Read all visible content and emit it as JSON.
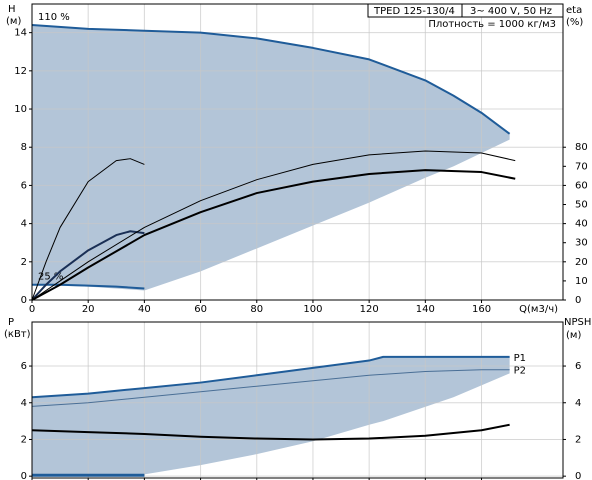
{
  "chart_data": [
    {
      "type": "line",
      "ylabel": "H",
      "yunit": "(м)",
      "y2label": "eta",
      "y2unit": "(%)",
      "xlabel": "Q(м3/ч)",
      "info": [
        "TPED 125-130/4",
        "3~ 400 V, 50 Hz",
        "Плотность = 1000 кг/м3"
      ],
      "xlim": [
        0,
        189
      ],
      "ylim": [
        0,
        15.5
      ],
      "y2lim": [
        0,
        155
      ],
      "xticks": [
        0,
        20,
        40,
        60,
        80,
        100,
        120,
        140,
        160
      ],
      "show_xtick_labels": true,
      "yticks": [
        0,
        2,
        4,
        6,
        8,
        10,
        12,
        14
      ],
      "y2ticks": [
        0,
        10,
        20,
        30,
        40,
        50,
        60,
        70,
        80
      ],
      "grid": true,
      "series": [
        {
          "name": "110 %",
          "label_at": "start",
          "color": "#1f5c99",
          "width": 2,
          "fill": "#b3c5d8",
          "x": [
            0,
            20,
            40,
            60,
            80,
            100,
            120,
            140,
            150,
            160,
            170
          ],
          "values": [
            14.4,
            14.2,
            14.1,
            14.0,
            13.7,
            13.2,
            12.6,
            11.5,
            10.7,
            9.8,
            8.7
          ],
          "lower": [
            0.8,
            0.7,
            0.5,
            1.5,
            2.7,
            3.9,
            5.1,
            6.4,
            7.0,
            7.7,
            8.4
          ]
        },
        {
          "name": "25 %",
          "label_at": "start",
          "color": "#1f5c99",
          "width": 2,
          "x": [
            0,
            10,
            20,
            30,
            40
          ],
          "values": [
            0.8,
            0.8,
            0.75,
            0.7,
            0.6
          ]
        },
        {
          "color": "#1a2f55",
          "width": 2,
          "x": [
            0,
            5,
            10,
            20,
            30,
            35,
            40
          ],
          "values": [
            0,
            0.8,
            1.5,
            2.6,
            3.4,
            3.6,
            3.5
          ]
        },
        {
          "color": "#000000",
          "width": 1,
          "axis": "y2",
          "x": [
            0,
            5,
            10,
            20,
            30,
            35,
            40
          ],
          "values": [
            0,
            20,
            38,
            62,
            73,
            74,
            71
          ]
        },
        {
          "color": "#000000",
          "width": 1,
          "axis": "y2",
          "x": [
            0,
            10,
            20,
            40,
            60,
            80,
            100,
            120,
            140,
            160,
            172
          ],
          "values": [
            0,
            10,
            20,
            38,
            52,
            63,
            71,
            76,
            78,
            77,
            73
          ]
        },
        {
          "color": "#000000",
          "width": 2,
          "axis": "y2",
          "x": [
            0,
            10,
            20,
            40,
            60,
            80,
            100,
            120,
            140,
            160,
            172
          ],
          "values": [
            0,
            8,
            17,
            34,
            46,
            56,
            62,
            66,
            68,
            67,
            63.5
          ]
        }
      ]
    },
    {
      "type": "line",
      "ylabel": "P",
      "yunit": "(кВт)",
      "y2label": "NPSH",
      "y2unit": "(м)",
      "xlim": [
        0,
        189
      ],
      "ylim": [
        -0.1,
        8.4
      ],
      "y2lim": [
        -0.1,
        8.4
      ],
      "xticks": [
        0,
        20,
        40,
        60,
        80,
        100,
        120,
        140,
        160
      ],
      "show_xtick_labels": false,
      "yticks": [
        0,
        2,
        4,
        6
      ],
      "y2ticks": [
        0,
        2,
        4,
        6
      ],
      "grid": true,
      "series": [
        {
          "name": "P1",
          "label_at": "end",
          "color": "#1f5c99",
          "width": 2,
          "fill": "#b3c5d8",
          "x": [
            0,
            20,
            40,
            60,
            80,
            100,
            120,
            125,
            150,
            170
          ],
          "values": [
            4.3,
            4.5,
            4.8,
            5.1,
            5.5,
            5.9,
            6.3,
            6.5,
            6.5,
            6.5
          ],
          "lower": [
            0,
            0,
            0.1,
            0.6,
            1.2,
            1.9,
            2.8,
            3.0,
            4.3,
            5.6
          ]
        },
        {
          "name": "P2",
          "label_at": "end",
          "color": "#4a6f96",
          "width": 1,
          "x": [
            0,
            20,
            40,
            60,
            80,
            100,
            120,
            140,
            160,
            170
          ],
          "values": [
            3.8,
            4.0,
            4.3,
            4.6,
            4.9,
            5.2,
            5.5,
            5.7,
            5.8,
            5.8
          ]
        },
        {
          "color": "#000000",
          "width": 2,
          "axis": "y2",
          "x": [
            0,
            20,
            40,
            60,
            80,
            100,
            120,
            140,
            160,
            170
          ],
          "values": [
            2.5,
            2.4,
            2.3,
            2.15,
            2.05,
            2.0,
            2.05,
            2.2,
            2.5,
            2.8
          ]
        },
        {
          "color": "#1f5c99",
          "width": 3,
          "x": [
            0,
            20,
            40
          ],
          "values": [
            0.05,
            0.05,
            0.05
          ]
        }
      ]
    }
  ]
}
